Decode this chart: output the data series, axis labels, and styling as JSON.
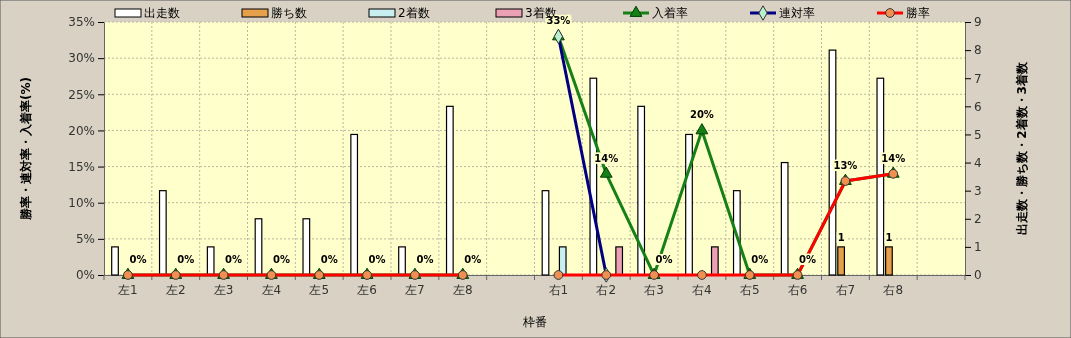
{
  "chart_data": {
    "type": "bar",
    "xlabel": "枠番",
    "ylabel": "勝率・連対率・入着率(%)",
    "y2label": "出走数・勝ち数・2着数・3着数",
    "categories": [
      "左1",
      "左2",
      "左3",
      "左4",
      "左5",
      "左6",
      "左7",
      "左8",
      null,
      "右1",
      "右2",
      "右3",
      "右4",
      "右5",
      "右6",
      "右7",
      "右8",
      null
    ],
    "series": [
      {
        "name": "出走数",
        "axis": "y2",
        "color": "#ffffff",
        "values": [
          1,
          3,
          1,
          2,
          2,
          5,
          1,
          6,
          null,
          3,
          7,
          6,
          5,
          3,
          4,
          8,
          7,
          null
        ]
      },
      {
        "name": "勝ち数",
        "axis": "y2",
        "color": "#e6a04a",
        "values": [
          0,
          0,
          0,
          0,
          0,
          0,
          0,
          0,
          null,
          0,
          0,
          0,
          0,
          0,
          0,
          1,
          1,
          null
        ],
        "value_labels": [
          null,
          null,
          null,
          null,
          null,
          null,
          null,
          null,
          null,
          null,
          null,
          null,
          null,
          null,
          null,
          "1",
          "1",
          null
        ]
      },
      {
        "name": "2着数",
        "axis": "y2",
        "color": "#c8f0f0",
        "values": [
          0,
          0,
          0,
          0,
          0,
          0,
          0,
          0,
          null,
          1,
          0,
          0,
          0,
          0,
          0,
          0,
          0,
          null
        ]
      },
      {
        "name": "3着数",
        "axis": "y2",
        "color": "#eca0b4",
        "values": [
          0,
          0,
          0,
          0,
          0,
          0,
          0,
          0,
          null,
          0,
          1,
          0,
          1,
          0,
          0,
          0,
          0,
          null
        ]
      },
      {
        "name": "入着率",
        "type": "line",
        "color": "#168016",
        "marker": "triangle",
        "values": [
          0,
          0,
          0,
          0,
          0,
          0,
          0,
          0,
          null,
          33,
          14,
          0,
          20,
          0,
          0,
          13,
          14,
          null
        ],
        "value_labels": [
          "0%",
          "0%",
          "0%",
          "0%",
          "0%",
          "0%",
          "0%",
          "0%",
          null,
          "33%",
          "14%",
          "0%",
          "20%",
          "0%",
          "0%",
          "13%",
          "14%",
          null
        ]
      },
      {
        "name": "連対率",
        "type": "line",
        "color": "#000080",
        "marker": "diamond",
        "values": [
          null,
          null,
          null,
          null,
          null,
          null,
          null,
          null,
          null,
          33,
          0,
          null,
          null,
          null,
          null,
          null,
          null,
          null
        ]
      },
      {
        "name": "勝率",
        "type": "line",
        "color": "#ff0000",
        "marker": "circle",
        "values": [
          0,
          0,
          0,
          0,
          0,
          0,
          0,
          0,
          null,
          0,
          0,
          0,
          0,
          0,
          0,
          13,
          14,
          null
        ]
      }
    ],
    "ylim": [
      0,
      35
    ],
    "yticks": [
      {
        "value": 0,
        "label": "0%"
      },
      {
        "value": 5,
        "label": "5%"
      },
      {
        "value": 10,
        "label": "10%"
      },
      {
        "value": 15,
        "label": "15%"
      },
      {
        "value": 20,
        "label": "20%"
      },
      {
        "value": 25,
        "label": "25%"
      },
      {
        "value": 30,
        "label": "30%"
      },
      {
        "value": 35,
        "label": "35%"
      }
    ],
    "y2lim": [
      0,
      9
    ],
    "y2ticks": [
      0,
      1,
      2,
      3,
      4,
      5,
      6,
      7,
      8,
      9
    ],
    "grid": true,
    "legend": "top"
  }
}
